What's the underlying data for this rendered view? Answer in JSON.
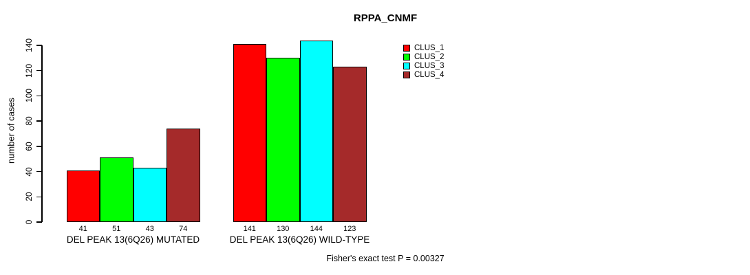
{
  "chart_data": {
    "type": "bar",
    "title": "RPPA_CNMF",
    "ylabel": "number of cases",
    "xlabel": "",
    "categories": [
      "DEL PEAK 13(6Q26) MUTATED",
      "DEL PEAK 13(6Q26) WILD-TYPE"
    ],
    "series": [
      {
        "name": "CLUS_1",
        "color": "#FF0000",
        "values": [
          41,
          141
        ]
      },
      {
        "name": "CLUS_2",
        "color": "#00FF00",
        "values": [
          51,
          130
        ]
      },
      {
        "name": "CLUS_3",
        "color": "#00FFFF",
        "values": [
          43,
          144
        ]
      },
      {
        "name": "CLUS_4",
        "color": "#A52A2A",
        "values": [
          74,
          123
        ]
      }
    ],
    "yticks": [
      0,
      20,
      40,
      60,
      80,
      100,
      120,
      140
    ],
    "ylim": [
      0,
      145
    ],
    "bar_value_labels": true,
    "grid": false,
    "legend_position": "top-right",
    "annotation": "Fisher's exact test P = 0.00327"
  }
}
